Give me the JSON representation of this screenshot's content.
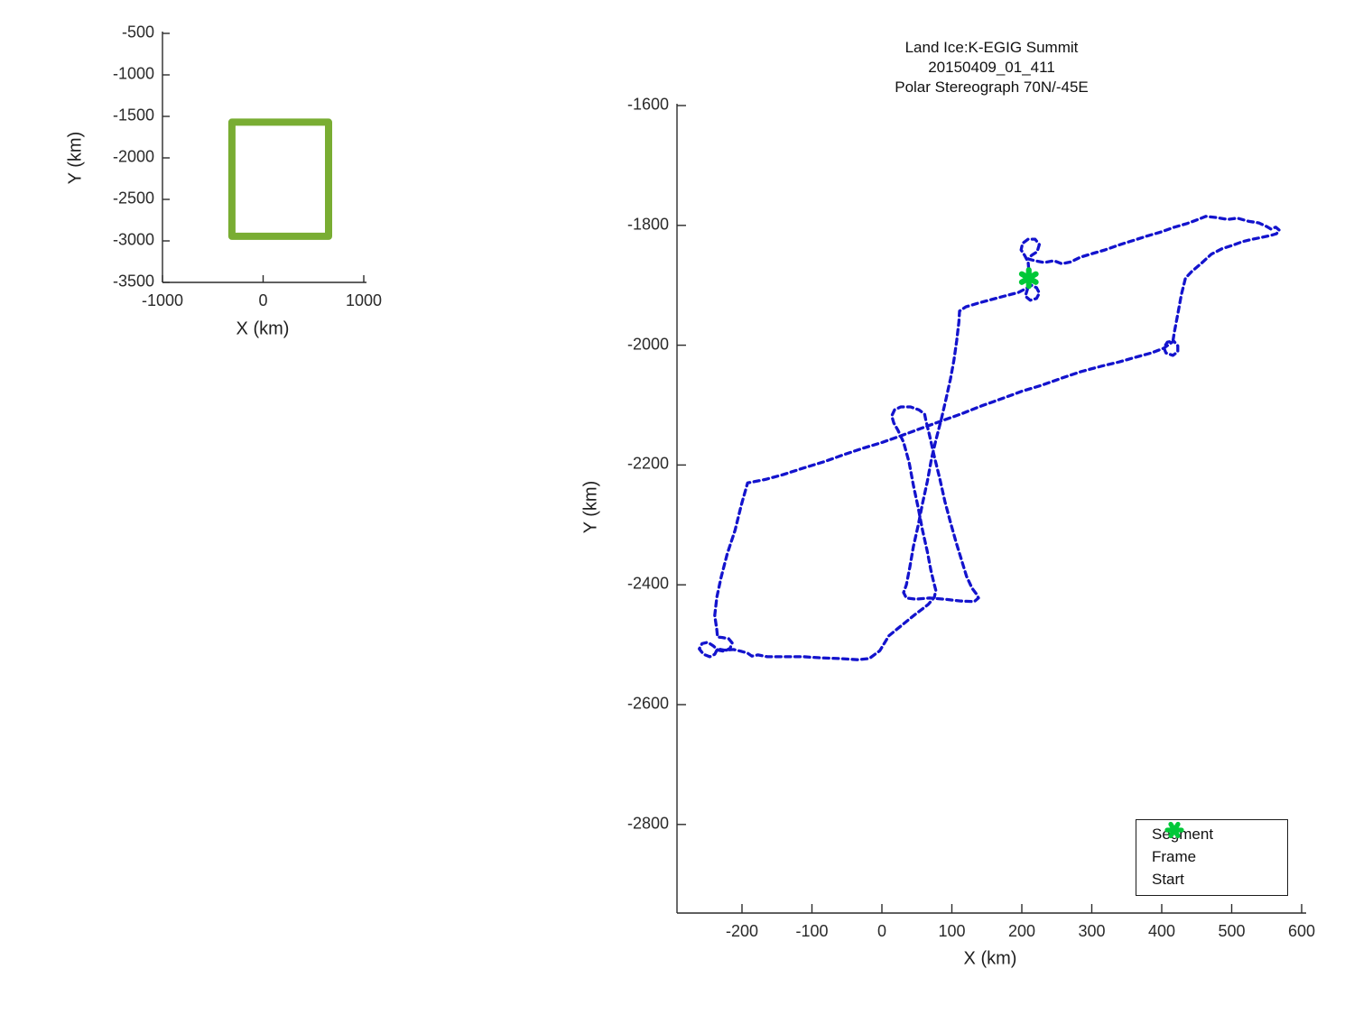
{
  "window": {
    "background": "#ffffff"
  },
  "colors": {
    "axis": "#2b2b2b",
    "segment_blue": "#1313cd",
    "frame_red": "#d42020",
    "start_green": "#00c838",
    "coverage_box_green": "#79ad33"
  },
  "overview_plot": {
    "xlabel": "X (km)",
    "ylabel": "Y (km)"
  },
  "flight_plot": {
    "title_line1": "Land Ice:K-EGIG Summit",
    "title_line2": "20150409_01_411",
    "title_line3": "Polar Stereograph 70N/-45E",
    "xlabel": "X (km)",
    "ylabel": "Y (km)",
    "legend": {
      "segment": "Segment",
      "frame": "Frame",
      "start": "Start"
    }
  },
  "chart_data": [
    {
      "id": "overview",
      "type": "line",
      "title": "",
      "xlabel": "X (km)",
      "ylabel": "Y (km)",
      "xlim": [
        -1000,
        1030
      ],
      "ylim": [
        -3500,
        -480
      ],
      "x_ticks": [
        -1000,
        0,
        1000
      ],
      "y_ticks": [
        -500,
        -1000,
        -1500,
        -2000,
        -2500,
        -3000,
        -3500
      ],
      "grid": false,
      "series": [
        {
          "name": "coverage-box",
          "color": "#79ad33",
          "width": 8,
          "dash": "",
          "closed": true,
          "points": [
            [
              -310,
              -1570
            ],
            [
              650,
              -1570
            ],
            [
              650,
              -2945
            ],
            [
              -310,
              -2945
            ]
          ]
        }
      ]
    },
    {
      "id": "flight",
      "type": "line",
      "title": "Land Ice:K-EGIG Summit 20150409_01_411 Polar Stereograph 70N/-45E",
      "xlabel": "X (km)",
      "ylabel": "Y (km)",
      "xlim": [
        -293,
        606
      ],
      "ylim": [
        -2948,
        -1597
      ],
      "x_ticks": [
        -200,
        -100,
        0,
        100,
        200,
        300,
        400,
        500,
        600
      ],
      "y_ticks": [
        -1600,
        -1800,
        -2000,
        -2200,
        -2400,
        -2600,
        -2800
      ],
      "grid": false,
      "legend_position": "bottom-right",
      "legend": [
        {
          "label": "Segment",
          "color": "#1313cd",
          "marker": "dot"
        },
        {
          "label": "Frame",
          "color": "#d42020",
          "marker": "dot"
        },
        {
          "label": "Start",
          "color": "#00c838",
          "marker": "asterisk"
        }
      ],
      "start_point": [
        210,
        -1888
      ],
      "series": [
        {
          "name": "Segment",
          "color": "#1313cd",
          "width": 3.3,
          "dash": "6 4.6",
          "closed": true,
          "points": [
            [
              210,
              -1888
            ],
            [
              210,
              -1876
            ],
            [
              209,
              -1861
            ],
            [
              204,
              -1850
            ],
            [
              199,
              -1841
            ],
            [
              201,
              -1830
            ],
            [
              209,
              -1823
            ],
            [
              219,
              -1823
            ],
            [
              225,
              -1832
            ],
            [
              222,
              -1844
            ],
            [
              214,
              -1850
            ],
            [
              209,
              -1856
            ],
            [
              219,
              -1859
            ],
            [
              232,
              -1862
            ],
            [
              246,
              -1859
            ],
            [
              257,
              -1864
            ],
            [
              270,
              -1861
            ],
            [
              284,
              -1853
            ],
            [
              301,
              -1847
            ],
            [
              319,
              -1841
            ],
            [
              338,
              -1833
            ],
            [
              357,
              -1826
            ],
            [
              378,
              -1818
            ],
            [
              399,
              -1811
            ],
            [
              418,
              -1803
            ],
            [
              436,
              -1797
            ],
            [
              452,
              -1790
            ],
            [
              463,
              -1785
            ],
            [
              479,
              -1787
            ],
            [
              494,
              -1790
            ],
            [
              508,
              -1788
            ],
            [
              524,
              -1793
            ],
            [
              539,
              -1796
            ],
            [
              550,
              -1802
            ],
            [
              556,
              -1806
            ],
            [
              563,
              -1803
            ],
            [
              568,
              -1808
            ],
            [
              564,
              -1814
            ],
            [
              555,
              -1817
            ],
            [
              543,
              -1820
            ],
            [
              530,
              -1823
            ],
            [
              516,
              -1827
            ],
            [
              502,
              -1833
            ],
            [
              486,
              -1839
            ],
            [
              471,
              -1848
            ],
            [
              456,
              -1864
            ],
            [
              443,
              -1877
            ],
            [
              434,
              -1888
            ],
            [
              428,
              -1916
            ],
            [
              423,
              -1948
            ],
            [
              418,
              -1978
            ],
            [
              416,
              -1993
            ],
            [
              408,
              -1995
            ],
            [
              403,
              -2004
            ],
            [
              406,
              -2013
            ],
            [
              416,
              -2017
            ],
            [
              423,
              -2011
            ],
            [
              423,
              -2001
            ],
            [
              417,
              -1993
            ],
            [
              403,
              -2005
            ],
            [
              385,
              -2013
            ],
            [
              363,
              -2020
            ],
            [
              339,
              -2028
            ],
            [
              314,
              -2035
            ],
            [
              285,
              -2044
            ],
            [
              257,
              -2055
            ],
            [
              228,
              -2067
            ],
            [
              200,
              -2077
            ],
            [
              172,
              -2089
            ],
            [
              143,
              -2101
            ],
            [
              115,
              -2114
            ],
            [
              86,
              -2126
            ],
            [
              58,
              -2138
            ],
            [
              30,
              -2150
            ],
            [
              1,
              -2162
            ],
            [
              -27,
              -2172
            ],
            [
              -55,
              -2183
            ],
            [
              -84,
              -2195
            ],
            [
              -112,
              -2205
            ],
            [
              -141,
              -2216
            ],
            [
              -166,
              -2224
            ],
            [
              -192,
              -2230
            ],
            [
              -201,
              -2267
            ],
            [
              -210,
              -2309
            ],
            [
              -221,
              -2348
            ],
            [
              -230,
              -2388
            ],
            [
              -236,
              -2421
            ],
            [
              -239,
              -2451
            ],
            [
              -236,
              -2475
            ],
            [
              -235,
              -2487
            ],
            [
              -228,
              -2488
            ],
            [
              -219,
              -2490
            ],
            [
              -214,
              -2497
            ],
            [
              -217,
              -2506
            ],
            [
              -225,
              -2511
            ],
            [
              -234,
              -2509
            ],
            [
              -241,
              -2502
            ],
            [
              -249,
              -2496
            ],
            [
              -257,
              -2498
            ],
            [
              -261,
              -2507
            ],
            [
              -255,
              -2516
            ],
            [
              -246,
              -2520
            ],
            [
              -239,
              -2516
            ],
            [
              -235,
              -2507
            ],
            [
              -225,
              -2509
            ],
            [
              -212,
              -2508
            ],
            [
              -201,
              -2511
            ],
            [
              -192,
              -2514
            ],
            [
              -186,
              -2519
            ],
            [
              -177,
              -2517
            ],
            [
              -164,
              -2520
            ],
            [
              -138,
              -2520
            ],
            [
              -112,
              -2520
            ],
            [
              -86,
              -2522
            ],
            [
              -61,
              -2523
            ],
            [
              -35,
              -2525
            ],
            [
              -18,
              -2523
            ],
            [
              -3,
              -2510
            ],
            [
              10,
              -2485
            ],
            [
              30,
              -2466
            ],
            [
              49,
              -2448
            ],
            [
              66,
              -2433
            ],
            [
              75,
              -2421
            ],
            [
              77,
              -2409
            ],
            [
              74,
              -2395
            ],
            [
              70,
              -2376
            ],
            [
              65,
              -2345
            ],
            [
              58,
              -2309
            ],
            [
              52,
              -2272
            ],
            [
              45,
              -2234
            ],
            [
              39,
              -2196
            ],
            [
              31,
              -2162
            ],
            [
              23,
              -2142
            ],
            [
              17,
              -2130
            ],
            [
              14,
              -2118
            ],
            [
              18,
              -2108
            ],
            [
              27,
              -2103
            ],
            [
              41,
              -2103
            ],
            [
              53,
              -2108
            ],
            [
              61,
              -2115
            ],
            [
              63,
              -2126
            ],
            [
              68,
              -2150
            ],
            [
              75,
              -2186
            ],
            [
              83,
              -2224
            ],
            [
              90,
              -2261
            ],
            [
              98,
              -2296
            ],
            [
              106,
              -2329
            ],
            [
              114,
              -2359
            ],
            [
              121,
              -2386
            ],
            [
              129,
              -2406
            ],
            [
              135,
              -2415
            ],
            [
              138,
              -2422
            ],
            [
              132,
              -2428
            ],
            [
              112,
              -2427
            ],
            [
              89,
              -2424
            ],
            [
              68,
              -2422
            ],
            [
              48,
              -2424
            ],
            [
              35,
              -2422
            ],
            [
              31,
              -2413
            ],
            [
              35,
              -2400
            ],
            [
              40,
              -2370
            ],
            [
              45,
              -2336
            ],
            [
              52,
              -2300
            ],
            [
              58,
              -2264
            ],
            [
              65,
              -2227
            ],
            [
              71,
              -2189
            ],
            [
              77,
              -2159
            ],
            [
              85,
              -2123
            ],
            [
              92,
              -2088
            ],
            [
              98,
              -2056
            ],
            [
              103,
              -2025
            ],
            [
              107,
              -1992
            ],
            [
              110,
              -1961
            ],
            [
              111,
              -1943
            ],
            [
              120,
              -1936
            ],
            [
              137,
              -1930
            ],
            [
              156,
              -1924
            ],
            [
              175,
              -1918
            ],
            [
              195,
              -1912
            ],
            [
              205,
              -1906
            ],
            [
              214,
              -1900
            ],
            [
              221,
              -1904
            ],
            [
              225,
              -1913
            ],
            [
              221,
              -1922
            ],
            [
              212,
              -1925
            ],
            [
              205,
              -1918
            ],
            [
              208,
              -1907
            ],
            [
              210,
              -1895
            ]
          ]
        }
      ]
    }
  ]
}
